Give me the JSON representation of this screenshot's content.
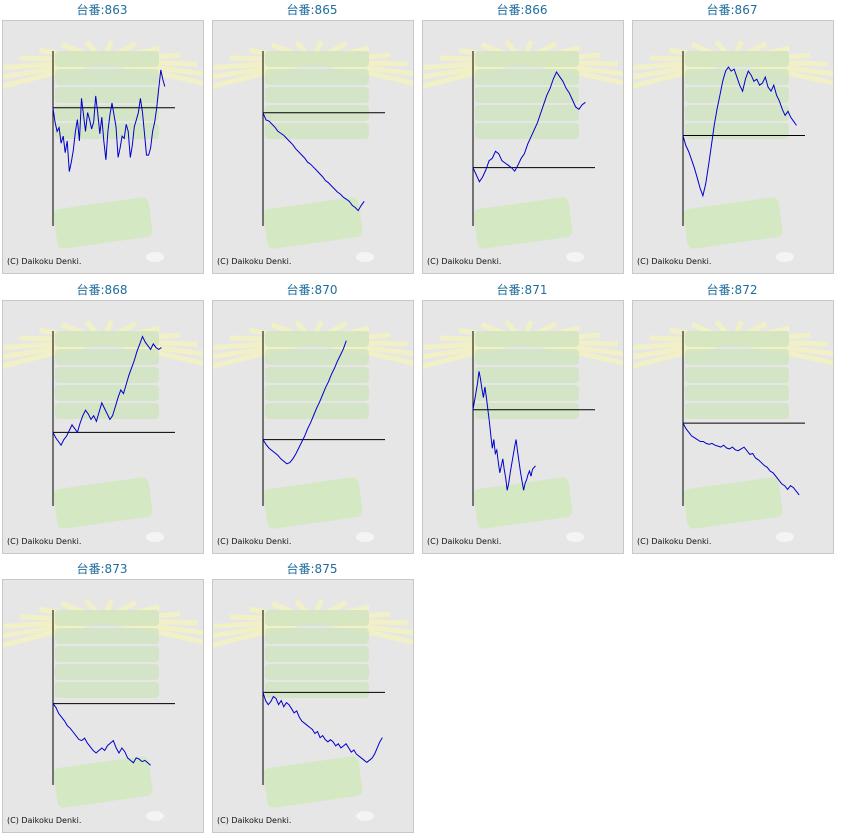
{
  "colors": {
    "title": "#1f6d9e",
    "line": "#0000cc",
    "axis": "#000000",
    "panel_bg": "#e6e6e6"
  },
  "credit": "(C) Daikoku Denki.",
  "charts": [
    {
      "title": "台番:863"
    },
    {
      "title": "台番:865"
    },
    {
      "title": "台番:866"
    },
    {
      "title": "台番:867"
    },
    {
      "title": "台番:868"
    },
    {
      "title": "台番:870"
    },
    {
      "title": "台番:871"
    },
    {
      "title": "台番:872"
    },
    {
      "title": "台番:873"
    },
    {
      "title": "台番:875"
    }
  ],
  "chart_data": [
    {
      "type": "line",
      "title": "台番:863",
      "x": [
        0,
        10,
        20,
        30,
        40,
        50,
        60,
        70,
        80,
        90,
        100,
        110,
        120,
        130,
        140,
        150,
        160,
        170,
        180,
        190,
        200,
        210,
        220,
        230,
        240,
        250,
        260,
        270,
        280,
        290,
        300,
        310,
        320,
        330,
        340,
        350,
        360,
        370,
        380,
        390,
        400,
        410,
        420,
        430,
        440,
        450,
        460,
        470,
        480,
        490,
        500,
        510,
        520,
        530,
        540,
        550
      ],
      "y": [
        0,
        -300,
        -500,
        -420,
        -750,
        -600,
        -950,
        -700,
        -1350,
        -1150,
        -900,
        -500,
        -250,
        -700,
        200,
        -150,
        -500,
        -100,
        -250,
        -450,
        -300,
        250,
        -100,
        -550,
        -200,
        -700,
        -1100,
        -500,
        -150,
        100,
        -150,
        -400,
        -1050,
        -850,
        -600,
        -650,
        -350,
        -500,
        -1050,
        -800,
        -400,
        -250,
        -100,
        200,
        -100,
        -550,
        -1000,
        -1000,
        -850,
        -500,
        -300,
        0,
        400,
        800,
        600,
        450
      ]
    },
    {
      "type": "line",
      "title": "台番:865",
      "x": [
        0,
        20,
        40,
        60,
        80,
        100,
        120,
        140,
        160,
        180,
        200,
        220,
        240,
        260,
        280,
        300,
        320,
        340,
        360,
        380,
        400,
        420,
        440,
        460,
        480,
        500,
        520,
        540,
        560,
        580,
        600,
        620,
        640,
        660,
        680
      ],
      "y": [
        0,
        -350,
        -400,
        -550,
        -700,
        -900,
        -1000,
        -1100,
        -1250,
        -1400,
        -1550,
        -1750,
        -1900,
        -2050,
        -2200,
        -2400,
        -2500,
        -2650,
        -2800,
        -2950,
        -3100,
        -3300,
        -3400,
        -3550,
        -3700,
        -3850,
        -3950,
        -4100,
        -4200,
        -4300,
        -4500,
        -4600,
        -4750,
        -4500,
        -4300
      ]
    },
    {
      "type": "line",
      "title": "台番:866",
      "x": [
        0,
        20,
        40,
        60,
        80,
        100,
        120,
        140,
        160,
        180,
        200,
        220,
        240,
        260,
        280,
        300,
        320,
        340,
        360,
        380,
        400,
        420,
        440,
        460,
        480,
        500,
        520,
        540,
        560,
        580,
        600,
        620,
        640,
        660,
        680,
        700
      ],
      "y": [
        0,
        -300,
        -600,
        -400,
        -100,
        300,
        400,
        700,
        600,
        300,
        200,
        100,
        0,
        -150,
        100,
        400,
        600,
        1000,
        1300,
        1600,
        1900,
        2300,
        2700,
        3100,
        3400,
        3800,
        4100,
        3900,
        3700,
        3400,
        3200,
        2900,
        2600,
        2500,
        2700,
        2800
      ]
    },
    {
      "type": "line",
      "title": "台番:867",
      "x": [
        0,
        20,
        40,
        60,
        80,
        100,
        120,
        140,
        160,
        180,
        200,
        220,
        240,
        260,
        280,
        300,
        320,
        340,
        360,
        380,
        400,
        420,
        440,
        460,
        480,
        500,
        520,
        540,
        560,
        580,
        600,
        620,
        640,
        660,
        680,
        700,
        720,
        740,
        760,
        780,
        800
      ],
      "y": [
        0,
        -500,
        -800,
        -1200,
        -1600,
        -2100,
        -2600,
        -3000,
        -2400,
        -1500,
        -500,
        500,
        1300,
        2000,
        2700,
        3200,
        3400,
        3200,
        3300,
        2900,
        2500,
        2200,
        2800,
        3200,
        3000,
        2700,
        2800,
        2500,
        2600,
        2900,
        2400,
        2200,
        2500,
        2000,
        1700,
        1300,
        1000,
        1200,
        900,
        700,
        500
      ]
    },
    {
      "type": "line",
      "title": "台番:868",
      "x": [
        0,
        20,
        40,
        60,
        80,
        100,
        120,
        140,
        160,
        180,
        200,
        220,
        240,
        260,
        280,
        300,
        320,
        340,
        360,
        380,
        400,
        420,
        440,
        460,
        480,
        500,
        520,
        540,
        560,
        580,
        600,
        620,
        640,
        660,
        680,
        700,
        720,
        740,
        760,
        780,
        800
      ],
      "y": [
        0,
        -300,
        -500,
        -700,
        -400,
        -200,
        100,
        400,
        200,
        0,
        500,
        900,
        1200,
        1000,
        700,
        900,
        600,
        1100,
        1600,
        1300,
        1000,
        700,
        900,
        1400,
        1900,
        2300,
        2100,
        2600,
        3100,
        3500,
        3900,
        4400,
        4800,
        5200,
        4900,
        4700,
        4500,
        4800,
        4600,
        4500,
        4600
      ]
    },
    {
      "type": "line",
      "title": "台番:870",
      "x": [
        0,
        20,
        40,
        60,
        80,
        100,
        120,
        140,
        160,
        180,
        200,
        220,
        240,
        260,
        280,
        300,
        320,
        340,
        360,
        380,
        400,
        420,
        440,
        460,
        480,
        500,
        520,
        540,
        560
      ],
      "y": [
        0,
        -400,
        -700,
        -900,
        -1100,
        -1300,
        -1600,
        -1800,
        -2000,
        -1900,
        -1600,
        -1200,
        -700,
        -200,
        300,
        900,
        1400,
        2000,
        2600,
        3100,
        3700,
        4300,
        4800,
        5400,
        5900,
        6500,
        7000,
        7500,
        8200
      ]
    },
    {
      "type": "line",
      "title": "台番:871",
      "x": [
        0,
        10,
        20,
        30,
        40,
        50,
        60,
        70,
        80,
        90,
        100,
        110,
        120,
        130,
        140,
        150,
        160,
        170,
        180,
        190,
        200,
        210,
        220,
        230,
        240,
        250,
        260,
        270,
        280,
        290,
        300,
        310,
        320,
        330,
        340,
        350,
        360,
        370,
        380,
        390,
        400,
        410,
        420
      ],
      "y": [
        0,
        500,
        1000,
        1500,
        2200,
        1800,
        1200,
        700,
        1300,
        700,
        0,
        -700,
        -1500,
        -2200,
        -1700,
        -2500,
        -2300,
        -3000,
        -3600,
        -3200,
        -2800,
        -3400,
        -3900,
        -4600,
        -4200,
        -3600,
        -3100,
        -2600,
        -2100,
        -1700,
        -2400,
        -3000,
        -3600,
        -4100,
        -4600,
        -4200,
        -4000,
        -3700,
        -3500,
        -3800,
        -3400,
        -3300,
        -3200
      ]
    },
    {
      "type": "line",
      "title": "台番:872",
      "x": [
        0,
        20,
        40,
        60,
        80,
        100,
        120,
        140,
        160,
        180,
        200,
        220,
        240,
        260,
        280,
        300,
        320,
        340,
        360,
        380,
        400,
        420,
        440,
        460,
        480,
        500,
        520,
        540,
        560,
        580,
        600,
        620,
        640,
        660,
        680,
        700,
        720,
        740,
        760,
        780,
        800
      ],
      "y": [
        0,
        -300,
        -500,
        -700,
        -800,
        -900,
        -1000,
        -1000,
        -1100,
        -1150,
        -1100,
        -1200,
        -1250,
        -1300,
        -1200,
        -1350,
        -1400,
        -1300,
        -1450,
        -1500,
        -1400,
        -1300,
        -1500,
        -1700,
        -1650,
        -1900,
        -2000,
        -2150,
        -2300,
        -2400,
        -2600,
        -2700,
        -2900,
        -3100,
        -3300,
        -3400,
        -3600,
        -3400,
        -3500,
        -3700,
        -3900
      ]
    },
    {
      "type": "line",
      "title": "台番:873",
      "x": [
        0,
        20,
        40,
        60,
        80,
        100,
        120,
        140,
        160,
        180,
        200,
        220,
        240,
        260,
        280,
        300,
        320,
        340,
        360,
        380,
        400,
        420,
        440,
        460,
        480,
        500,
        520,
        540,
        560,
        580,
        600,
        620,
        640,
        660,
        680
      ],
      "y": [
        0,
        -150,
        -400,
        -550,
        -700,
        -900,
        -1000,
        -1150,
        -1300,
        -1450,
        -1500,
        -1400,
        -1600,
        -1750,
        -1900,
        -2000,
        -1900,
        -1800,
        -1900,
        -1700,
        -1600,
        -1500,
        -1800,
        -2000,
        -1800,
        -1950,
        -2200,
        -2300,
        -2400,
        -2200,
        -2250,
        -2350,
        -2300,
        -2400,
        -2500
      ]
    },
    {
      "type": "line",
      "title": "台番:875",
      "x": [
        0,
        20,
        40,
        60,
        80,
        100,
        120,
        140,
        160,
        180,
        200,
        220,
        240,
        260,
        280,
        300,
        320,
        340,
        360,
        380,
        400,
        420,
        440,
        460,
        480,
        500,
        520,
        540,
        560,
        580,
        600,
        620,
        640,
        660,
        680,
        700,
        720,
        740,
        760,
        780,
        800,
        820,
        840,
        860,
        880,
        900,
        920
      ],
      "y": [
        0,
        -400,
        -600,
        -450,
        -200,
        -300,
        -600,
        -400,
        -700,
        -500,
        -600,
        -800,
        -1000,
        -900,
        -1200,
        -1400,
        -1500,
        -1600,
        -1700,
        -1800,
        -2000,
        -1900,
        -2200,
        -2100,
        -2300,
        -2400,
        -2300,
        -2400,
        -2600,
        -2500,
        -2700,
        -2600,
        -2500,
        -2700,
        -2900,
        -2800,
        -3000,
        -3100,
        -3200,
        -3300,
        -3400,
        -3300,
        -3200,
        -3000,
        -2700,
        -2400,
        -2200
      ]
    }
  ]
}
